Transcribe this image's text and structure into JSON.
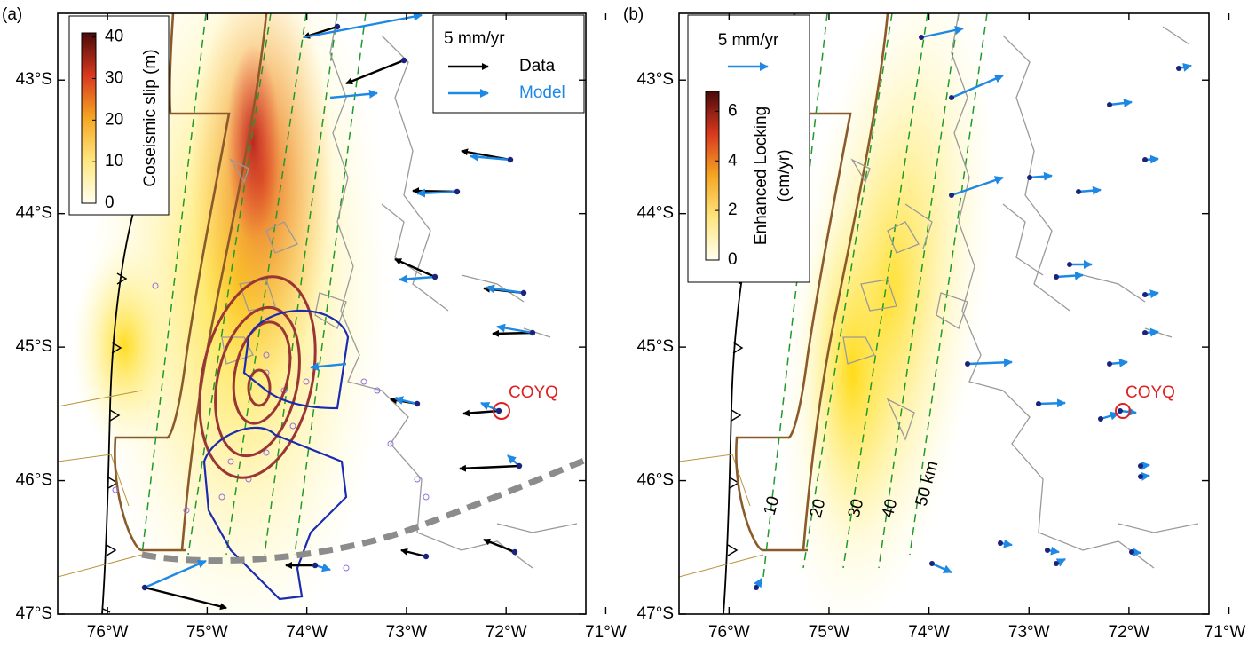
{
  "panels": [
    {
      "label": "(a)",
      "xlim": [
        -76.5,
        -71.2
      ],
      "ylim": [
        -47,
        -42.5
      ],
      "xticks": [
        {
          "value": -76,
          "label": "76°W"
        },
        {
          "value": -75,
          "label": "75°W"
        },
        {
          "value": -74,
          "label": "74°W"
        },
        {
          "value": -73,
          "label": "73°W"
        },
        {
          "value": -72,
          "label": "72°W"
        },
        {
          "value": -71,
          "label": "71°W"
        }
      ],
      "yticks": [
        {
          "value": -43,
          "label": "43°S"
        },
        {
          "value": -44,
          "label": "44°S"
        },
        {
          "value": -45,
          "label": "45°S"
        },
        {
          "value": -46,
          "label": "46°S"
        },
        {
          "value": -47,
          "label": "47°S"
        }
      ],
      "colorbar": {
        "title": "Coseismic slip (m)",
        "lim": [
          0,
          41
        ],
        "ticks": [
          0,
          10,
          20,
          30,
          40
        ]
      },
      "legend": {
        "scale": "5 mm/yr",
        "items": [
          "Data",
          "Model"
        ]
      },
      "station_label": "COYQ"
    },
    {
      "label": "(b)",
      "xlim": [
        -76.5,
        -71.2
      ],
      "ylim": [
        -47,
        -42.5
      ],
      "xticks": [
        {
          "value": -76,
          "label": "76°W"
        },
        {
          "value": -75,
          "label": "75°W"
        },
        {
          "value": -74,
          "label": "74°W"
        },
        {
          "value": -73,
          "label": "73°W"
        },
        {
          "value": -72,
          "label": "72°W"
        },
        {
          "value": -71,
          "label": "71°W"
        }
      ],
      "yticks": [
        {
          "value": -43,
          "label": "43°S"
        },
        {
          "value": -44,
          "label": "44°S"
        },
        {
          "value": -45,
          "label": "45°S"
        },
        {
          "value": -46,
          "label": "46°S"
        },
        {
          "value": -47,
          "label": "47°S"
        }
      ],
      "colorbar": {
        "title": [
          "Enhanced Locking",
          "(cm/yr)"
        ],
        "lim": [
          0,
          6.8
        ],
        "ticks": [
          0,
          2,
          4,
          6
        ]
      },
      "legend": {
        "scale": "5 mm/yr"
      },
      "station_label": "COYQ",
      "depth_labels": [
        "10",
        "20",
        "30",
        "40",
        "50 km"
      ]
    }
  ]
}
